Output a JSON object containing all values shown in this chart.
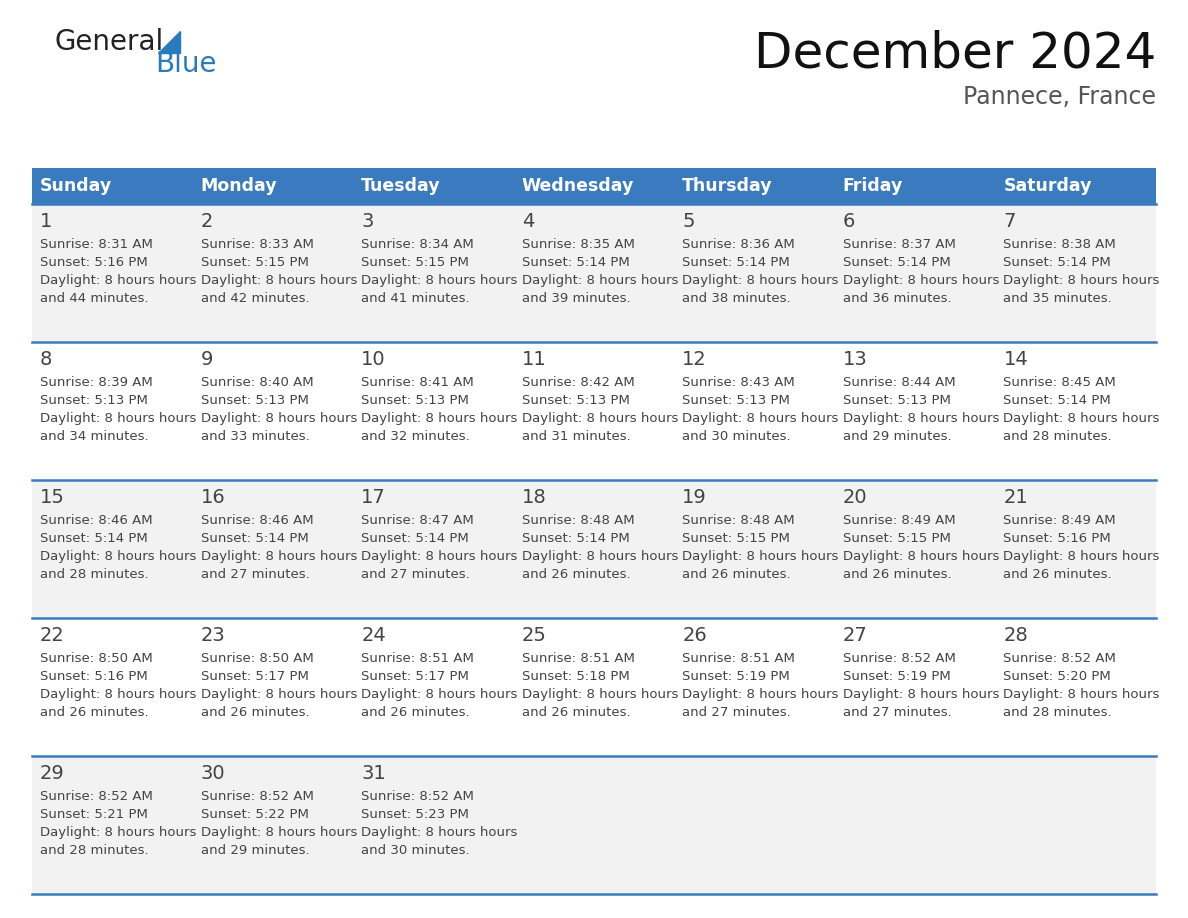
{
  "title": "December 2024",
  "subtitle": "Pannece, France",
  "header_bg_color": "#3a7abf",
  "header_text_color": "#ffffff",
  "row_bg_even": "#f2f2f2",
  "row_bg_odd": "#ffffff",
  "text_color": "#444444",
  "sep_color": "#3a7abf",
  "days_of_week": [
    "Sunday",
    "Monday",
    "Tuesday",
    "Wednesday",
    "Thursday",
    "Friday",
    "Saturday"
  ],
  "weeks": [
    [
      {
        "day": 1,
        "sunrise": "8:31 AM",
        "sunset": "5:16 PM",
        "daylight": "8 hours and 44 minutes."
      },
      {
        "day": 2,
        "sunrise": "8:33 AM",
        "sunset": "5:15 PM",
        "daylight": "8 hours and 42 minutes."
      },
      {
        "day": 3,
        "sunrise": "8:34 AM",
        "sunset": "5:15 PM",
        "daylight": "8 hours and 41 minutes."
      },
      {
        "day": 4,
        "sunrise": "8:35 AM",
        "sunset": "5:14 PM",
        "daylight": "8 hours and 39 minutes."
      },
      {
        "day": 5,
        "sunrise": "8:36 AM",
        "sunset": "5:14 PM",
        "daylight": "8 hours and 38 minutes."
      },
      {
        "day": 6,
        "sunrise": "8:37 AM",
        "sunset": "5:14 PM",
        "daylight": "8 hours and 36 minutes."
      },
      {
        "day": 7,
        "sunrise": "8:38 AM",
        "sunset": "5:14 PM",
        "daylight": "8 hours and 35 minutes."
      }
    ],
    [
      {
        "day": 8,
        "sunrise": "8:39 AM",
        "sunset": "5:13 PM",
        "daylight": "8 hours and 34 minutes."
      },
      {
        "day": 9,
        "sunrise": "8:40 AM",
        "sunset": "5:13 PM",
        "daylight": "8 hours and 33 minutes."
      },
      {
        "day": 10,
        "sunrise": "8:41 AM",
        "sunset": "5:13 PM",
        "daylight": "8 hours and 32 minutes."
      },
      {
        "day": 11,
        "sunrise": "8:42 AM",
        "sunset": "5:13 PM",
        "daylight": "8 hours and 31 minutes."
      },
      {
        "day": 12,
        "sunrise": "8:43 AM",
        "sunset": "5:13 PM",
        "daylight": "8 hours and 30 minutes."
      },
      {
        "day": 13,
        "sunrise": "8:44 AM",
        "sunset": "5:13 PM",
        "daylight": "8 hours and 29 minutes."
      },
      {
        "day": 14,
        "sunrise": "8:45 AM",
        "sunset": "5:14 PM",
        "daylight": "8 hours and 28 minutes."
      }
    ],
    [
      {
        "day": 15,
        "sunrise": "8:46 AM",
        "sunset": "5:14 PM",
        "daylight": "8 hours and 28 minutes."
      },
      {
        "day": 16,
        "sunrise": "8:46 AM",
        "sunset": "5:14 PM",
        "daylight": "8 hours and 27 minutes."
      },
      {
        "day": 17,
        "sunrise": "8:47 AM",
        "sunset": "5:14 PM",
        "daylight": "8 hours and 27 minutes."
      },
      {
        "day": 18,
        "sunrise": "8:48 AM",
        "sunset": "5:14 PM",
        "daylight": "8 hours and 26 minutes."
      },
      {
        "day": 19,
        "sunrise": "8:48 AM",
        "sunset": "5:15 PM",
        "daylight": "8 hours and 26 minutes."
      },
      {
        "day": 20,
        "sunrise": "8:49 AM",
        "sunset": "5:15 PM",
        "daylight": "8 hours and 26 minutes."
      },
      {
        "day": 21,
        "sunrise": "8:49 AM",
        "sunset": "5:16 PM",
        "daylight": "8 hours and 26 minutes."
      }
    ],
    [
      {
        "day": 22,
        "sunrise": "8:50 AM",
        "sunset": "5:16 PM",
        "daylight": "8 hours and 26 minutes."
      },
      {
        "day": 23,
        "sunrise": "8:50 AM",
        "sunset": "5:17 PM",
        "daylight": "8 hours and 26 minutes."
      },
      {
        "day": 24,
        "sunrise": "8:51 AM",
        "sunset": "5:17 PM",
        "daylight": "8 hours and 26 minutes."
      },
      {
        "day": 25,
        "sunrise": "8:51 AM",
        "sunset": "5:18 PM",
        "daylight": "8 hours and 26 minutes."
      },
      {
        "day": 26,
        "sunrise": "8:51 AM",
        "sunset": "5:19 PM",
        "daylight": "8 hours and 27 minutes."
      },
      {
        "day": 27,
        "sunrise": "8:52 AM",
        "sunset": "5:19 PM",
        "daylight": "8 hours and 27 minutes."
      },
      {
        "day": 28,
        "sunrise": "8:52 AM",
        "sunset": "5:20 PM",
        "daylight": "8 hours and 28 minutes."
      }
    ],
    [
      {
        "day": 29,
        "sunrise": "8:52 AM",
        "sunset": "5:21 PM",
        "daylight": "8 hours and 28 minutes."
      },
      {
        "day": 30,
        "sunrise": "8:52 AM",
        "sunset": "5:22 PM",
        "daylight": "8 hours and 29 minutes."
      },
      {
        "day": 31,
        "sunrise": "8:52 AM",
        "sunset": "5:23 PM",
        "daylight": "8 hours and 30 minutes."
      },
      null,
      null,
      null,
      null
    ]
  ],
  "logo_text_general": "General",
  "logo_text_blue": "Blue",
  "logo_color_general": "#222222",
  "logo_color_blue": "#2a7abf",
  "logo_triangle_color": "#2a7abf",
  "figsize": [
    11.88,
    9.18
  ],
  "dpi": 100
}
